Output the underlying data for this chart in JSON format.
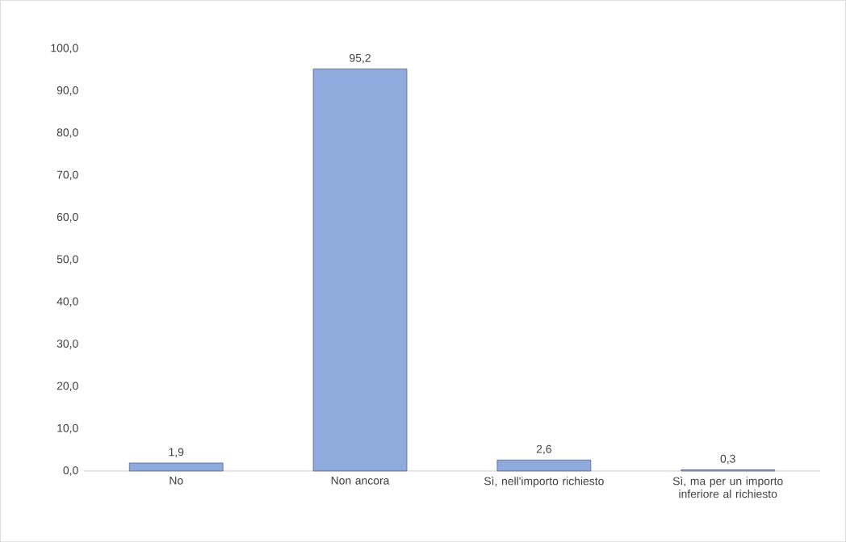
{
  "chart_data": {
    "type": "bar",
    "categories": [
      "No",
      "Non ancora",
      "Sì, nell'importo richiesto",
      "Sì, ma per un importo inferiore al richiesto"
    ],
    "values": [
      1.9,
      95.2,
      2.6,
      0.3
    ],
    "value_labels": [
      "1,9",
      "95,2",
      "2,6",
      "0,3"
    ],
    "color": "#8faadc",
    "ylim": [
      0,
      100
    ],
    "yticks": [
      {
        "value": 0,
        "label": "0,0"
      },
      {
        "value": 10,
        "label": "10,0"
      },
      {
        "value": 20,
        "label": "20,0"
      },
      {
        "value": 30,
        "label": "30,0"
      },
      {
        "value": 40,
        "label": "40,0"
      },
      {
        "value": 50,
        "label": "50,0"
      },
      {
        "value": 60,
        "label": "60,0"
      },
      {
        "value": 70,
        "label": "70,0"
      },
      {
        "value": 80,
        "label": "80,0"
      },
      {
        "value": 90,
        "label": "90,0"
      },
      {
        "value": 100,
        "label": "100,0"
      }
    ]
  }
}
